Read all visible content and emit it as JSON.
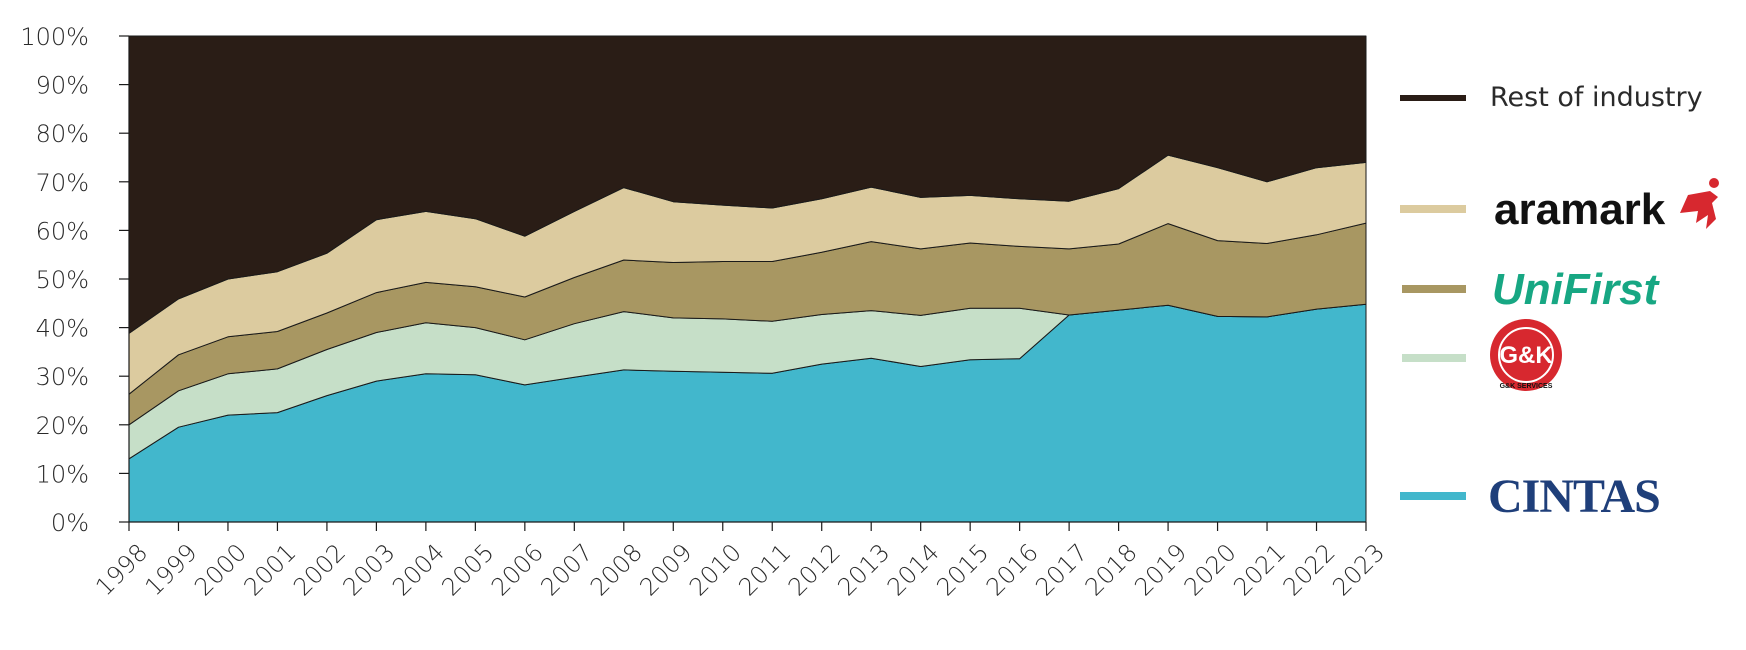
{
  "chart_data": {
    "type": "area",
    "stacked": true,
    "normalized": true,
    "x": [
      1998,
      1999,
      2000,
      2001,
      2002,
      2003,
      2004,
      2005,
      2006,
      2007,
      2008,
      2009,
      2010,
      2011,
      2012,
      2013,
      2014,
      2015,
      2016,
      2017,
      2018,
      2019,
      2020,
      2021,
      2022,
      2023
    ],
    "x_tick_labels": [
      "1998",
      "1999",
      "2000",
      "2001",
      "2002",
      "2003",
      "2004",
      "2005",
      "2006",
      "2007",
      "2008",
      "2009",
      "2010",
      "2011",
      "2012",
      "2013",
      "2014",
      "2015",
      "2016",
      "2017",
      "2018",
      "2019",
      "2020",
      "2021",
      "2022",
      "2023"
    ],
    "y_tick_labels": [
      "0%",
      "10%",
      "20%",
      "30%",
      "40%",
      "50%",
      "60%",
      "70%",
      "80%",
      "90%",
      "100%"
    ],
    "ylim": [
      0,
      100
    ],
    "series": [
      {
        "key": "cintas",
        "color": "#42b7cc",
        "values": [
          13,
          19.5,
          22,
          22.5,
          26,
          29,
          30.5,
          30.3,
          28.2,
          29.8,
          31.3,
          31,
          30.8,
          30.6,
          32.5,
          33.7,
          32,
          33.4,
          33.6,
          42.6,
          43.6,
          44.6,
          42.3,
          42.2,
          43.8,
          44.8
        ]
      },
      {
        "key": "gk-services",
        "color": "#c6dfc8",
        "values": [
          7,
          7.5,
          8.5,
          9,
          9.5,
          10,
          10.5,
          9.7,
          9.3,
          11,
          12,
          11,
          11,
          10.7,
          10.2,
          9.8,
          10.5,
          10.6,
          10.4,
          0,
          0,
          0,
          0,
          0,
          0,
          0
        ]
      },
      {
        "key": "unifirst",
        "color": "#a89762",
        "values": [
          6.3,
          7.4,
          7.6,
          7.7,
          7.5,
          8.2,
          8.3,
          8.4,
          8.8,
          9.5,
          10.6,
          11.4,
          11.8,
          12.3,
          12.8,
          14.2,
          13.7,
          13.4,
          12.7,
          13.6,
          13.6,
          16.8,
          15.6,
          15.1,
          15.3,
          16.7
        ]
      },
      {
        "key": "aramark",
        "color": "#dccb9f",
        "values": [
          12.5,
          11.5,
          11.9,
          12.3,
          12.3,
          15,
          14.6,
          14,
          12.5,
          13.6,
          14.9,
          12.5,
          11.6,
          11,
          11,
          11.2,
          10.6,
          9.8,
          9.8,
          9.8,
          11.4,
          14.1,
          15,
          12.7,
          13.8,
          12.5
        ]
      },
      {
        "key": "rest",
        "color": "#2a1d16",
        "name": "Rest of industry",
        "values": [
          61.2,
          54.1,
          50,
          48.5,
          44.7,
          37.8,
          36.1,
          37.6,
          41.2,
          36.1,
          31.2,
          34.1,
          34.8,
          35.4,
          33.5,
          31.1,
          33.2,
          32.8,
          33.5,
          34,
          31.4,
          24.5,
          27.1,
          30,
          27.1,
          26
        ]
      }
    ],
    "legend": {
      "placement": "right",
      "entries": [
        {
          "key": "rest",
          "label": "Rest of industry",
          "color": "#2a1d16"
        },
        {
          "key": "aramark",
          "logo_text": "aramark",
          "logo_color": "#111111",
          "accent": "#d7282f",
          "color": "#dccb9f"
        },
        {
          "key": "unifirst",
          "logo_text": "UniFirst",
          "logo_color": "#17a783",
          "color": "#a89762"
        },
        {
          "key": "gk-services",
          "logo_text": "G&K",
          "logo_sub": "G&K SERVICES",
          "logo_color": "#d7282f",
          "color": "#c6dfc8"
        },
        {
          "key": "cintas",
          "logo_text": "CINTAS",
          "logo_color": "#1f3f7a",
          "color": "#42b7cc"
        }
      ]
    }
  }
}
